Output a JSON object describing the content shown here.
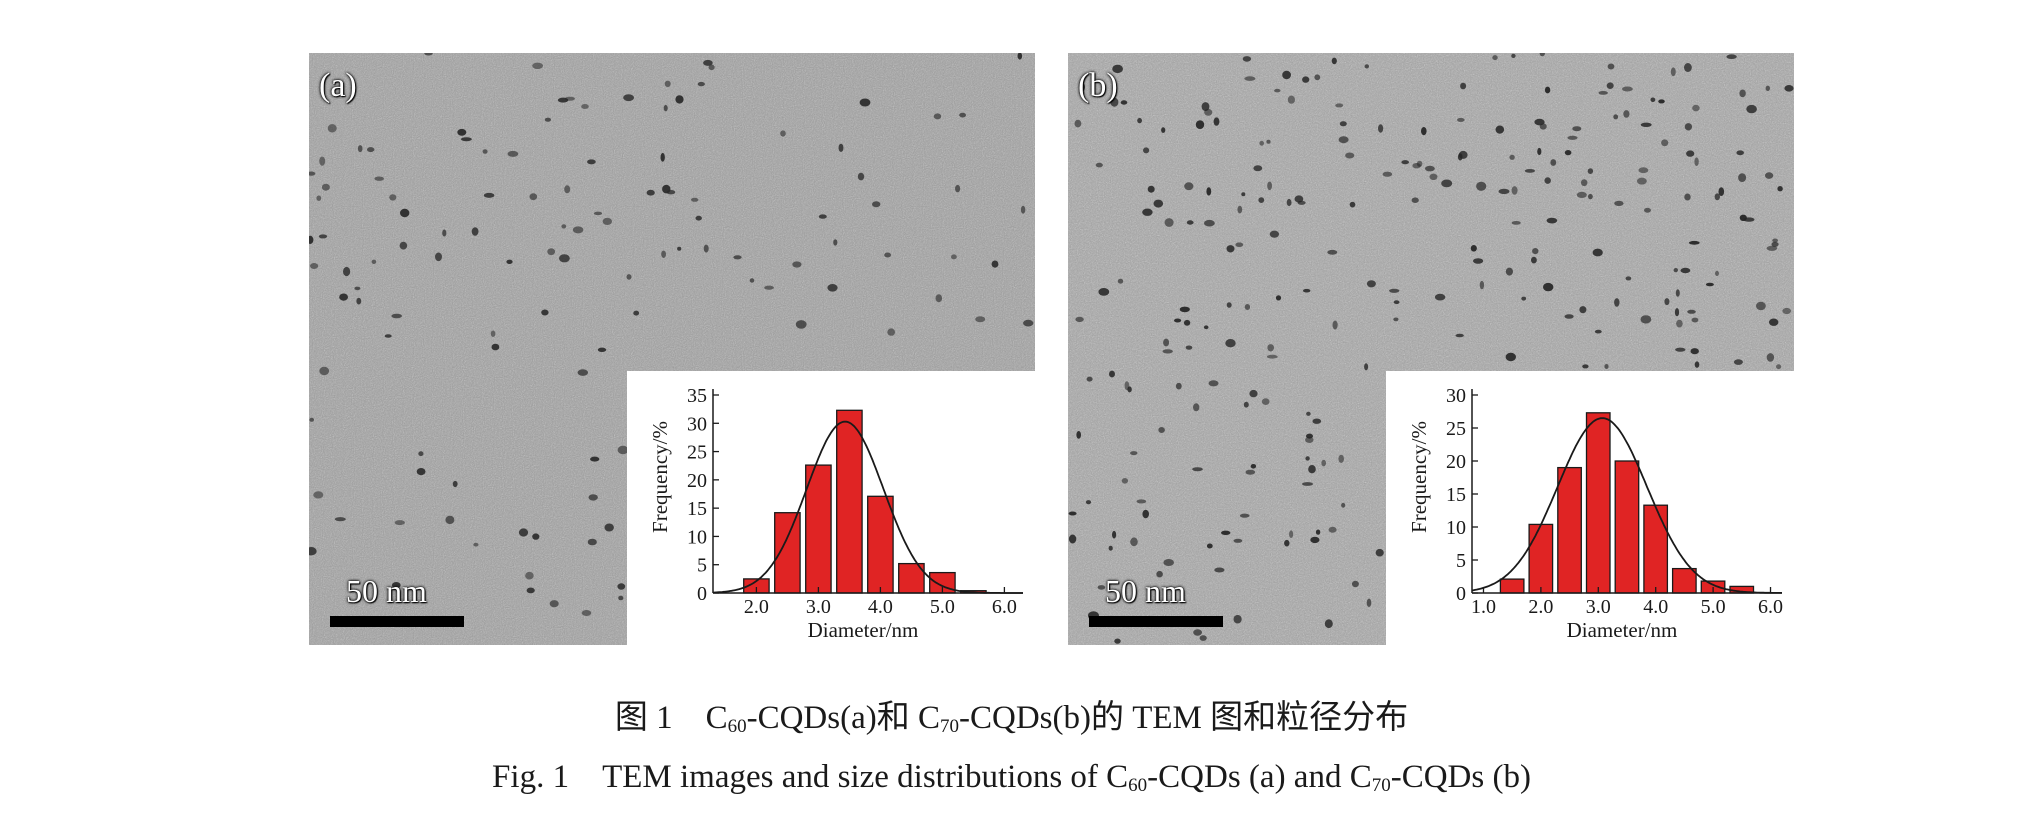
{
  "panels": [
    {
      "label": "(a)",
      "scale_bar": "50 nm",
      "inset": {
        "ylabel": "Frequency/%",
        "xlabel": "Diameter/nm",
        "y_ticks": [
          "0",
          "5",
          "10",
          "15",
          "20",
          "25",
          "30",
          "35"
        ],
        "x_ticks": [
          "2.0",
          "3.0",
          "4.0",
          "5.0",
          "6.0"
        ]
      }
    },
    {
      "label": "(b)",
      "scale_bar": "50 nm",
      "inset": {
        "ylabel": "Frequency/%",
        "xlabel": "Diameter/nm",
        "y_ticks": [
          "0",
          "5",
          "10",
          "15",
          "20",
          "25",
          "30"
        ],
        "x_ticks": [
          "1.0",
          "2.0",
          "3.0",
          "4.0",
          "5.0",
          "6.0"
        ]
      }
    }
  ],
  "caption": {
    "cn_prefix": "图 1　C",
    "cn_sub1": "60",
    "cn_mid": "-CQDs(a)和 C",
    "cn_sub2": "70",
    "cn_suffix": "-CQDs(b)的 TEM 图和粒径分布",
    "en_prefix": "Fig. 1　TEM images and size distributions of C",
    "en_sub1": "60",
    "en_mid": "-CQDs (a) and C",
    "en_sub2": "70",
    "en_suffix": "-CQDs (b)"
  },
  "chart_data": [
    {
      "type": "bar",
      "panel": "a",
      "xlabel": "Diameter/nm",
      "ylabel": "Frequency/%",
      "xlim": [
        1.3,
        6.3
      ],
      "ylim": [
        0,
        35
      ],
      "x": [
        2.0,
        2.5,
        3.0,
        3.5,
        4.0,
        4.5,
        5.0,
        5.5
      ],
      "values": [
        2.5,
        14.2,
        22.6,
        32.3,
        17.1,
        5.2,
        3.6,
        0.4
      ],
      "fit": {
        "type": "gaussian",
        "amplitude": 30.3,
        "mean": 3.43,
        "sigma": 0.62
      }
    },
    {
      "type": "bar",
      "panel": "b",
      "xlabel": "Diameter/nm",
      "ylabel": "Frequency/%",
      "xlim": [
        0.8,
        6.2
      ],
      "ylim": [
        0,
        30
      ],
      "x": [
        1.5,
        2.0,
        2.5,
        3.0,
        3.5,
        4.0,
        4.5,
        5.0,
        5.5
      ],
      "values": [
        2.1,
        10.4,
        19.0,
        27.3,
        20.0,
        13.3,
        3.7,
        1.8,
        1.0
      ],
      "fit": {
        "type": "gaussian",
        "amplitude": 26.5,
        "mean": 3.07,
        "sigma": 0.78
      }
    }
  ]
}
